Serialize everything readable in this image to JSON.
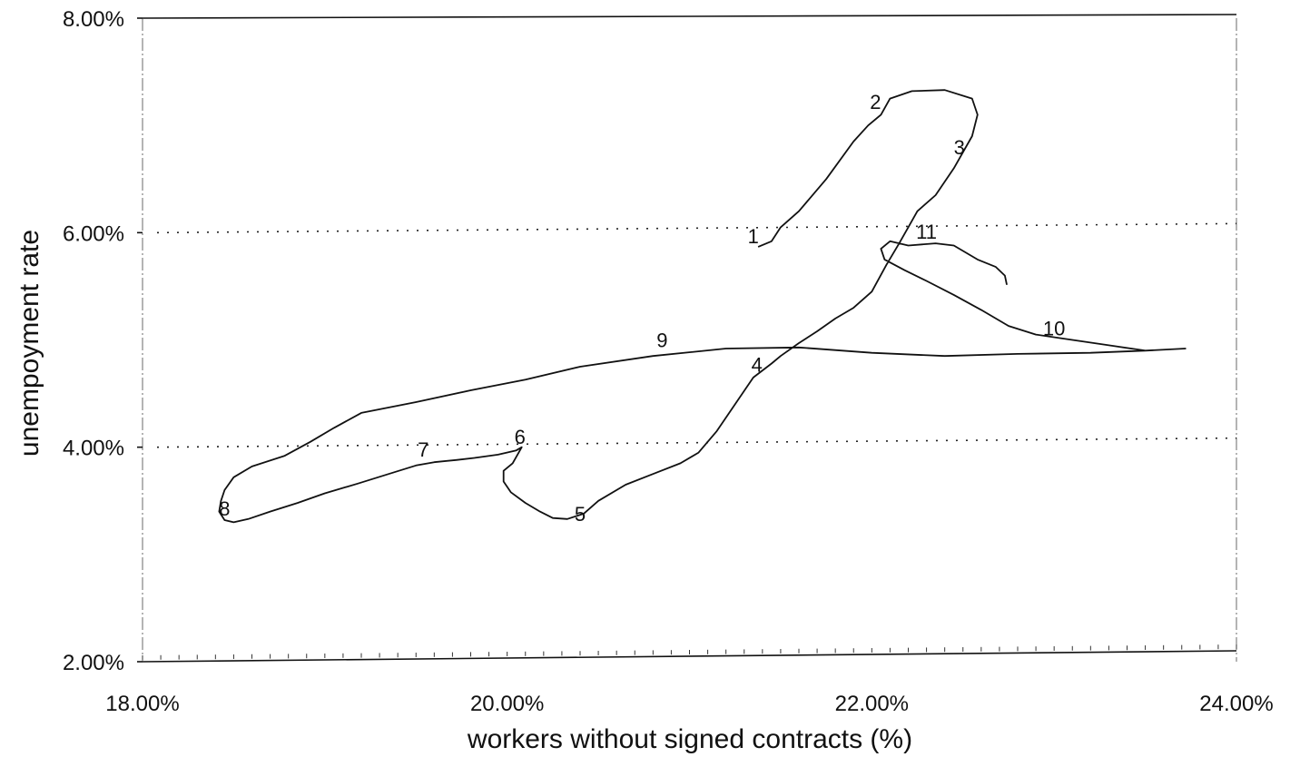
{
  "chart_data": {
    "type": "line",
    "title": "",
    "xlabel": "workers without signed contracts (%)",
    "ylabel": "unempoyment rate",
    "xlim": [
      18.0,
      24.0
    ],
    "ylim": [
      2.0,
      8.0
    ],
    "x_ticks": [
      18.0,
      20.0,
      22.0,
      24.0
    ],
    "y_ticks": [
      2.0,
      4.0,
      6.0,
      8.0
    ],
    "x_tick_labels": [
      "18.00%",
      "20.00%",
      "22.00%",
      "24.00%"
    ],
    "y_tick_labels": [
      "2.00%",
      "4.00%",
      "6.00%",
      "8.00%"
    ],
    "gridlines_y": [
      4.0,
      6.0
    ],
    "grid": "dotted horizontal lines at 4.00% and 6.00%",
    "legend": "none",
    "series": [
      {
        "points": [
          [
            21.38,
            5.87
          ],
          [
            21.45,
            5.92
          ],
          [
            21.5,
            6.05
          ],
          [
            21.6,
            6.2
          ],
          [
            21.75,
            6.5
          ],
          [
            21.9,
            6.85
          ],
          [
            21.98,
            7.0
          ],
          [
            22.05,
            7.1
          ],
          [
            22.1,
            7.25
          ],
          [
            22.22,
            7.32
          ],
          [
            22.4,
            7.33
          ],
          [
            22.55,
            7.25
          ],
          [
            22.58,
            7.1
          ],
          [
            22.55,
            6.9
          ],
          [
            22.45,
            6.6
          ],
          [
            22.35,
            6.35
          ],
          [
            22.25,
            6.2
          ],
          [
            22.2,
            6.05
          ],
          [
            22.15,
            5.9
          ],
          [
            22.08,
            5.7
          ],
          [
            22.0,
            5.45
          ],
          [
            21.9,
            5.3
          ],
          [
            21.8,
            5.2
          ],
          [
            21.7,
            5.08
          ],
          [
            21.6,
            4.97
          ],
          [
            21.5,
            4.85
          ],
          [
            21.45,
            4.78
          ],
          [
            21.35,
            4.65
          ],
          [
            21.25,
            4.4
          ],
          [
            21.15,
            4.15
          ],
          [
            21.05,
            3.95
          ],
          [
            20.95,
            3.85
          ],
          [
            20.8,
            3.75
          ],
          [
            20.65,
            3.65
          ],
          [
            20.5,
            3.5
          ],
          [
            20.42,
            3.38
          ],
          [
            20.33,
            3.33
          ],
          [
            20.25,
            3.34
          ],
          [
            20.18,
            3.4
          ],
          [
            20.1,
            3.48
          ],
          [
            20.02,
            3.58
          ],
          [
            19.98,
            3.68
          ],
          [
            19.98,
            3.78
          ],
          [
            20.03,
            3.85
          ],
          [
            20.06,
            3.94
          ],
          [
            20.08,
            4.0
          ],
          [
            20.05,
            3.97
          ],
          [
            19.95,
            3.93
          ],
          [
            19.82,
            3.9
          ],
          [
            19.72,
            3.88
          ],
          [
            19.6,
            3.86
          ],
          [
            19.5,
            3.83
          ],
          [
            19.35,
            3.75
          ],
          [
            19.18,
            3.66
          ],
          [
            19.0,
            3.57
          ],
          [
            18.85,
            3.48
          ],
          [
            18.7,
            3.4
          ],
          [
            18.58,
            3.33
          ],
          [
            18.5,
            3.3
          ],
          [
            18.45,
            3.32
          ],
          [
            18.42,
            3.4
          ],
          [
            18.43,
            3.5
          ],
          [
            18.45,
            3.6
          ],
          [
            18.5,
            3.72
          ],
          [
            18.6,
            3.82
          ],
          [
            18.78,
            3.92
          ],
          [
            18.92,
            4.05
          ],
          [
            19.05,
            4.18
          ],
          [
            19.2,
            4.32
          ],
          [
            19.5,
            4.42
          ],
          [
            19.8,
            4.53
          ],
          [
            20.1,
            4.63
          ],
          [
            20.4,
            4.75
          ],
          [
            20.8,
            4.85
          ],
          [
            21.2,
            4.92
          ],
          [
            21.6,
            4.93
          ],
          [
            22.0,
            4.88
          ],
          [
            22.4,
            4.85
          ],
          [
            22.8,
            4.87
          ],
          [
            23.2,
            4.88
          ],
          [
            23.5,
            4.9
          ],
          [
            23.72,
            4.92
          ],
          [
            23.5,
            4.9
          ],
          [
            23.3,
            4.95
          ],
          [
            23.1,
            5.0
          ],
          [
            22.9,
            5.05
          ],
          [
            22.75,
            5.13
          ],
          [
            22.6,
            5.28
          ],
          [
            22.45,
            5.42
          ],
          [
            22.3,
            5.55
          ],
          [
            22.18,
            5.65
          ],
          [
            22.07,
            5.75
          ],
          [
            22.05,
            5.85
          ],
          [
            22.1,
            5.92
          ],
          [
            22.2,
            5.88
          ],
          [
            22.35,
            5.9
          ],
          [
            22.45,
            5.88
          ],
          [
            22.58,
            5.75
          ],
          [
            22.68,
            5.68
          ],
          [
            22.73,
            5.6
          ],
          [
            22.74,
            5.52
          ]
        ]
      }
    ],
    "point_labels": [
      {
        "text": "1",
        "x": 21.35,
        "y": 5.97
      },
      {
        "text": "2",
        "x": 22.02,
        "y": 7.22
      },
      {
        "text": "3",
        "x": 22.48,
        "y": 6.8
      },
      {
        "text": "4",
        "x": 21.37,
        "y": 4.77
      },
      {
        "text": "5",
        "x": 20.4,
        "y": 3.38
      },
      {
        "text": "6",
        "x": 20.07,
        "y": 4.1
      },
      {
        "text": "7",
        "x": 19.54,
        "y": 3.98
      },
      {
        "text": "8",
        "x": 18.45,
        "y": 3.43
      },
      {
        "text": "9",
        "x": 20.85,
        "y": 5.0
      },
      {
        "text": "10",
        "x": 23.0,
        "y": 5.11
      },
      {
        "text": "11",
        "x": 22.3,
        "y": 6.01
      }
    ]
  }
}
